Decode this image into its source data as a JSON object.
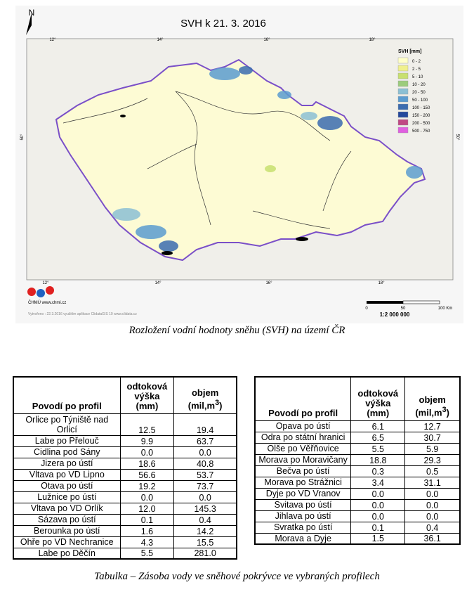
{
  "map": {
    "north": "N",
    "title": "SVH k 21. 3. 2016",
    "legend_title": "SVH [mm]",
    "legend": [
      {
        "label": "0 - 2",
        "color": "#ffffc8"
      },
      {
        "label": "2 - 5",
        "color": "#f0f08c"
      },
      {
        "label": "5 - 10",
        "color": "#c8e070"
      },
      {
        "label": "10 - 20",
        "color": "#9ccc7c"
      },
      {
        "label": "20 - 50",
        "color": "#8cc0d4"
      },
      {
        "label": "50 - 100",
        "color": "#5c9cd0"
      },
      {
        "label": "100 - 150",
        "color": "#3c6cb0"
      },
      {
        "label": "150 - 200",
        "color": "#24489c"
      },
      {
        "label": "200 - 500",
        "color": "#c04884"
      },
      {
        "label": "500 - 750",
        "color": "#e060e0"
      }
    ],
    "top_ticks": [
      "12°",
      "14°",
      "16°",
      "18°"
    ],
    "bottom_ticks": [
      "12°",
      "14°",
      "16°",
      "18°"
    ],
    "side_ticks": [
      "50°",
      "50°"
    ],
    "logo_text": "ČHMÚ www.chmi.cz",
    "credit": "Vytvořeno : 22.3.2016 využitím aplikace ClidataGIS 10 www.clidata.cz",
    "scale_labels": [
      "0",
      "50",
      "100 Km"
    ],
    "scale_ratio": "1:2 000 000"
  },
  "map_caption": "Rozložení vodní hodnoty sněhu (SVH) na území ČR",
  "tables": [
    {
      "header": {
        "name": "Povodí po profil",
        "height": "odtoková výška (mm)",
        "volume": "objem (mil,m",
        "volume_sup": "3",
        "volume_end": ")"
      },
      "rows": [
        [
          "Orlice po Týniště nad Orlicí",
          "12.5",
          "19.4"
        ],
        [
          "Labe po Přelouč",
          "9.9",
          "63.7"
        ],
        [
          "Cidlina pod Sány",
          "0.0",
          "0.0"
        ],
        [
          "Jizera po ústí",
          "18.6",
          "40.8"
        ],
        [
          "Vltava po VD Lipno",
          "56.6",
          "53.7"
        ],
        [
          "Otava po ústí",
          "19.2",
          "73.7"
        ],
        [
          "Lužnice po ústí",
          "0.0",
          "0.0"
        ],
        [
          "Vltava po VD Orlík",
          "12.0",
          "145.3"
        ],
        [
          "Sázava po ústí",
          "0.1",
          "0.4"
        ],
        [
          "Berounka po ústí",
          "1.6",
          "14.2"
        ],
        [
          "Ohře po VD Nechranice",
          "4.3",
          "15.5"
        ],
        [
          "Labe po Děčín",
          "5.5",
          "281.0"
        ]
      ]
    },
    {
      "header": {
        "name": "Povodí po profil",
        "height": "odtoková výška (mm)",
        "volume": "objem (mil,m",
        "volume_sup": "3",
        "volume_end": ")"
      },
      "rows": [
        [
          "Opava po ústí",
          "6.1",
          "12.7"
        ],
        [
          "Odra po státní hranici",
          "6.5",
          "30.7"
        ],
        [
          "Olše po Věřňovice",
          "5.5",
          "5.9"
        ],
        [
          "Morava po Moravičany",
          "18.8",
          "29.3"
        ],
        [
          "Bečva po ústí",
          "0.3",
          "0.5"
        ],
        [
          "Morava po Strážnici",
          "3.4",
          "31.1"
        ],
        [
          "Dyje po VD Vranov",
          "0.0",
          "0.0"
        ],
        [
          "Svitava po ústí",
          "0.0",
          "0.0"
        ],
        [
          "Jihlava po ústí",
          "0.0",
          "0.0"
        ],
        [
          "Svratka po ústí",
          "0.1",
          "0.4"
        ],
        [
          "Morava a Dyje",
          "1.5",
          "36.1"
        ]
      ]
    }
  ],
  "table_caption": "Tabulka – Zásoba vody ve sněhové pokrývce ve vybraných profilech"
}
